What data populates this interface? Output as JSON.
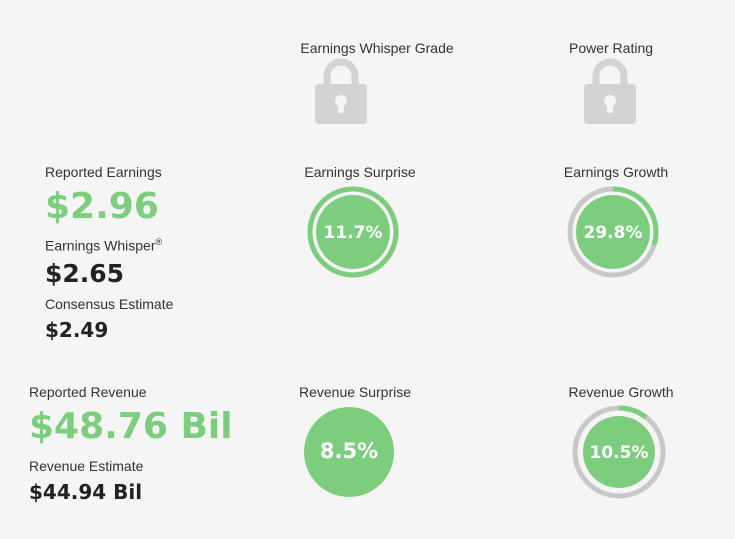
{
  "grades": {
    "whisper_grade_label": "Earnings Whisper Grade",
    "power_rating_label": "Power Rating",
    "lock_icon": "lock-icon"
  },
  "earnings": {
    "reported_label": "Reported Earnings",
    "reported_value": "$2.96",
    "whisper_label": "Earnings Whisper",
    "whisper_mark": "®",
    "whisper_value": "$2.65",
    "consensus_label": "Consensus Estimate",
    "consensus_value": "$2.49",
    "surprise_label": "Earnings Surprise",
    "surprise_value": "11.7%",
    "surprise_pct": 100,
    "growth_label": "Earnings Growth",
    "growth_value": "29.8%",
    "growth_pct": 29.8
  },
  "revenue": {
    "reported_label": "Reported Revenue",
    "reported_value": "$48.76 Bil",
    "estimate_label": "Revenue Estimate",
    "estimate_value": "$44.94 Bil",
    "surprise_label": "Revenue Surprise",
    "surprise_value": "8.5%",
    "growth_label": "Revenue Growth",
    "growth_value": "10.5%",
    "growth_pct": 10.5
  },
  "colors": {
    "accent_green": "#7dcd7f",
    "ring_gray": "#c8c8c8",
    "lock_gray": "#d3d3d3"
  }
}
